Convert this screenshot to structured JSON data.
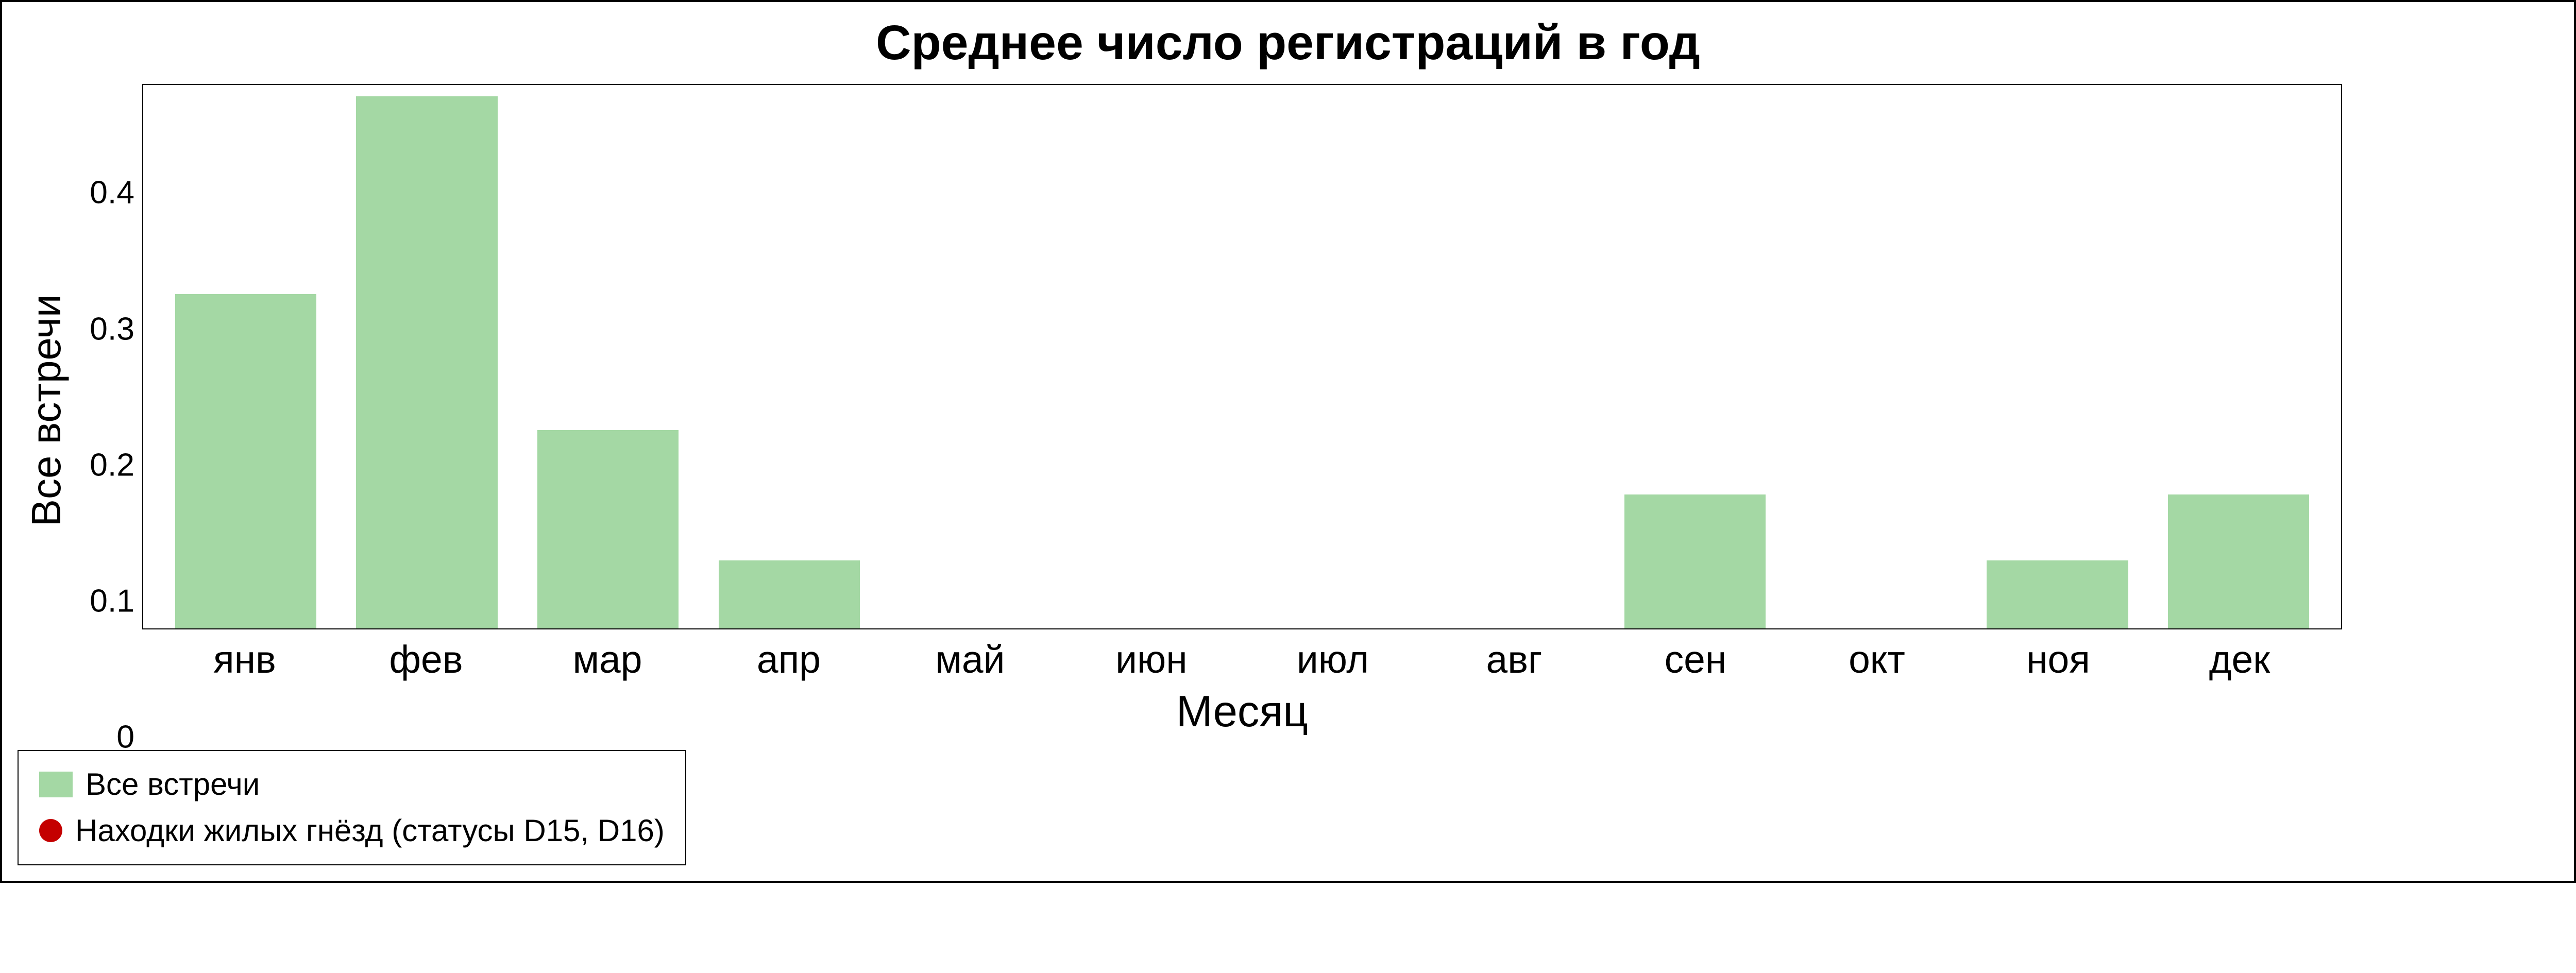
{
  "chart": {
    "type": "bar",
    "title": "Среднее число регистраций в год",
    "title_fontsize": 28,
    "title_fontweight": "bold",
    "xlabel": "Месяц",
    "xlabel_fontsize": 24,
    "ylabel": "Все встречи",
    "ylabel_fontsize": 24,
    "categories": [
      "янв",
      "фев",
      "мар",
      "апр",
      "май",
      "июн",
      "июл",
      "авг",
      "сен",
      "окт",
      "ноя",
      "дек"
    ],
    "values": [
      0.295,
      0.47,
      0.175,
      0.06,
      0,
      0,
      0,
      0,
      0.118,
      0,
      0.06,
      0.118
    ],
    "bar_color": "#a4d8a4",
    "bar_width": 0.78,
    "ylim": [
      0,
      0.48
    ],
    "yticks": [
      0,
      0.1,
      0.2,
      0.3,
      0.4
    ],
    "ytick_labels": [
      "0",
      "0.1",
      "0.2",
      "0.3",
      "0.4"
    ],
    "tick_fontsize": 20,
    "background_color": "#ffffff",
    "axis_color": "#000000",
    "frame_border_color": "#000000"
  },
  "legend": {
    "border_color": "#000000",
    "items": [
      {
        "marker": "rect",
        "color": "#a4d8a4",
        "label": "Все встречи"
      },
      {
        "marker": "circle",
        "color": "#c40000",
        "label": "Находки жилых гнёзд (статусы D15, D16)"
      }
    ]
  }
}
